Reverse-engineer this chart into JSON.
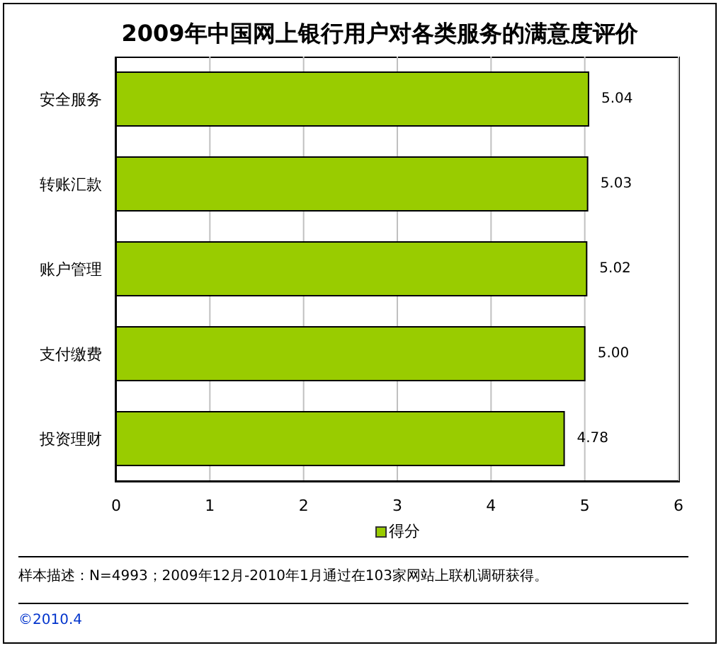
{
  "chart_data": {
    "type": "bar",
    "orientation": "horizontal",
    "title": "2009年中国网上银行用户对各类服务的满意度评价",
    "categories": [
      "安全服务",
      "转账汇款",
      "账户管理",
      "支付缴费",
      "投资理财"
    ],
    "series": [
      {
        "name": "得分",
        "color": "#99cc00",
        "values": [
          5.04,
          5.03,
          5.02,
          5.0,
          4.78
        ],
        "value_labels": [
          "5.04",
          "5.03",
          "5.02",
          "5.00",
          "4.78"
        ]
      }
    ],
    "xlim": [
      0,
      6
    ],
    "xticks": [
      0,
      1,
      2,
      3,
      4,
      5,
      6
    ],
    "grid": "x",
    "legend": "bottom",
    "annotations": [
      "样本描述：N=4993；2009年12月-2010年1月通过在103家网站上联机调研获得。",
      "©2010.4"
    ]
  }
}
